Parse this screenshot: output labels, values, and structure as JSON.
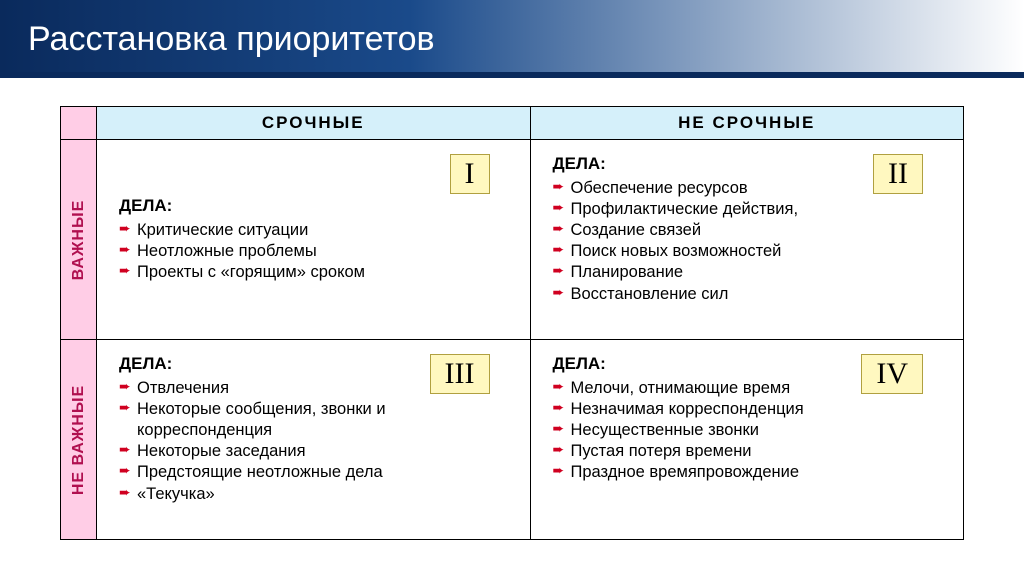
{
  "title": "Расстановка приоритетов",
  "columns": {
    "urgent": "СРОЧНЫЕ",
    "not_urgent": "НЕ СРОЧНЫЕ"
  },
  "rows": {
    "important": "ВАЖНЫЕ",
    "not_important": "НЕ ВАЖНЫЕ"
  },
  "listLabel": "ДЕЛА:",
  "quadrants": {
    "q1": {
      "numeral": "I",
      "items": [
        "Критические ситуации",
        "Неотложные проблемы",
        "Проекты с «горящим» сроком"
      ]
    },
    "q2": {
      "numeral": "II",
      "items": [
        "Обеспечение ресурсов",
        "Профилактические действия,",
        "Создание связей",
        "Поиск новых возможностей",
        "Планирование",
        "Восстановление сил"
      ]
    },
    "q3": {
      "numeral": "III",
      "items": [
        "Отвлечения",
        "Некоторые сообщения, звонки  и корреспонденция",
        "Некоторые заседания",
        "Предстоящие неотложные дела",
        "«Текучка»"
      ]
    },
    "q4": {
      "numeral": "IV",
      "items": [
        "Мелочи, отнимающие время",
        "Незначимая корреспонденция",
        "Несущественные звонки",
        "Пустая потеря времени",
        "Праздное времяпровождение"
      ]
    }
  },
  "colors": {
    "titlebar_gradient_from": "#0a2a5c",
    "titlebar_gradient_to": "#ffffff",
    "col_header_bg": "#d5f0fa",
    "row_header_bg": "#ffcde6",
    "row_header_text": "#b01050",
    "quad_badge_bg": "#fff8c0",
    "bullet_color": "#d00020",
    "border_color": "#000000"
  }
}
